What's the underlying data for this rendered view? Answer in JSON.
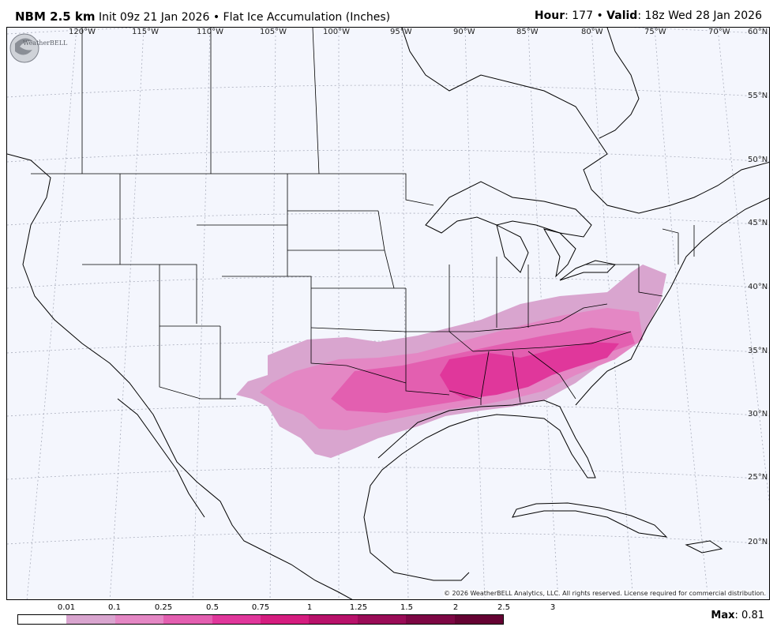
{
  "header": {
    "model": "NBM 2.5 km",
    "init": "Init 09z 21 Jan 2026",
    "bullet": "•",
    "product": "Flat Ice Accumulation (Inches)",
    "hour_label": "Hour",
    "hour_value": ": 177",
    "valid_label": "Valid",
    "valid_value": ": 18z Wed 28 Jan 2026"
  },
  "map": {
    "longitude_labels": [
      "120°W",
      "115°W",
      "110°W",
      "105°W",
      "100°W",
      "95°W",
      "90°W",
      "85°W",
      "80°W",
      "75°W",
      "70°W"
    ],
    "latitude_labels": [
      "60°N",
      "55°N",
      "50°N",
      "45°N",
      "40°N",
      "35°N",
      "30°N",
      "25°N",
      "20°N"
    ],
    "background_color": "#f4f6fd",
    "logo_text": "WeatherBELL",
    "copyright": "© 2026 WeatherBELL Analytics, LLC. All rights reserved. License required for commercial distribution."
  },
  "legend": {
    "ticks": [
      "0.01",
      "0.1",
      "0.25",
      "0.5",
      "0.75",
      "1",
      "1.25",
      "1.5",
      "2",
      "2.5",
      "3"
    ],
    "colors": [
      "#ffffff",
      "#d9a5cf",
      "#e487c4",
      "#e35fb0",
      "#e0379b",
      "#d51d7f",
      "#b8126a",
      "#9a0c57",
      "#7d0744",
      "#650333"
    ],
    "max_label": "Max",
    "max_value": ": 0.81"
  }
}
